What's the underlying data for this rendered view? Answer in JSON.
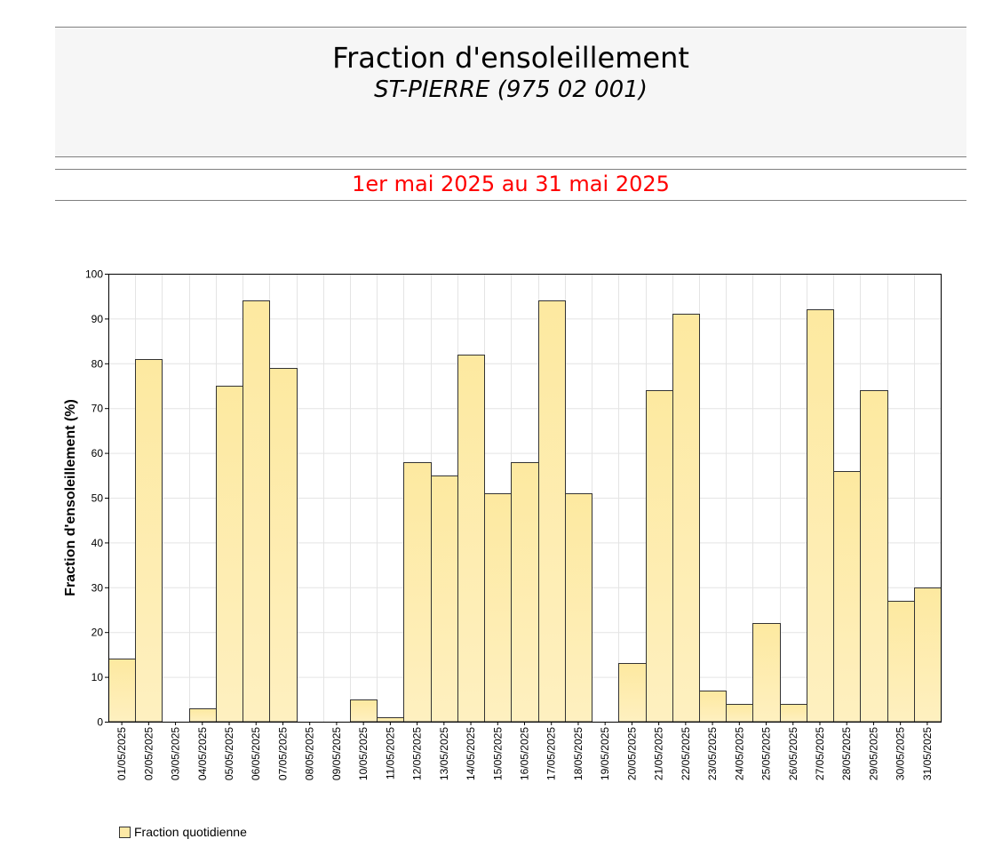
{
  "header": {
    "title": "Fraction d'ensoleillement",
    "subtitle": "ST-PIERRE (975 02 001)",
    "period": "1er mai 2025 au 31 mai 2025"
  },
  "colors": {
    "bar_fill_top": "#fde9a0",
    "bar_fill_bottom": "#fef0c0",
    "bar_stroke": "#333333",
    "grid": "#e4e4e4",
    "period_text": "#ff0000"
  },
  "chart_data": {
    "type": "bar",
    "ylabel": "Fraction d'ensoleillement (%)",
    "xlabel": "",
    "ylim": [
      0,
      100
    ],
    "yticks": [
      0,
      10,
      20,
      30,
      40,
      50,
      60,
      70,
      80,
      90,
      100
    ],
    "grid": true,
    "legend_position": "bottom-left",
    "categories": [
      "01/05/2025",
      "02/05/2025",
      "03/05/2025",
      "04/05/2025",
      "05/05/2025",
      "06/05/2025",
      "07/05/2025",
      "08/05/2025",
      "09/05/2025",
      "10/05/2025",
      "11/05/2025",
      "12/05/2025",
      "13/05/2025",
      "14/05/2025",
      "15/05/2025",
      "16/05/2025",
      "17/05/2025",
      "18/05/2025",
      "19/05/2025",
      "20/05/2025",
      "21/05/2025",
      "22/05/2025",
      "23/05/2025",
      "24/05/2025",
      "25/05/2025",
      "26/05/2025",
      "27/05/2025",
      "28/05/2025",
      "29/05/2025",
      "30/05/2025",
      "31/05/2025"
    ],
    "series": [
      {
        "name": "Fraction quotidienne",
        "values": [
          14,
          81,
          0,
          3,
          75,
          94,
          79,
          0,
          0,
          5,
          1,
          58,
          55,
          82,
          51,
          58,
          94,
          51,
          0,
          13,
          74,
          91,
          7,
          4,
          22,
          4,
          92,
          56,
          74,
          27,
          30
        ]
      }
    ]
  }
}
